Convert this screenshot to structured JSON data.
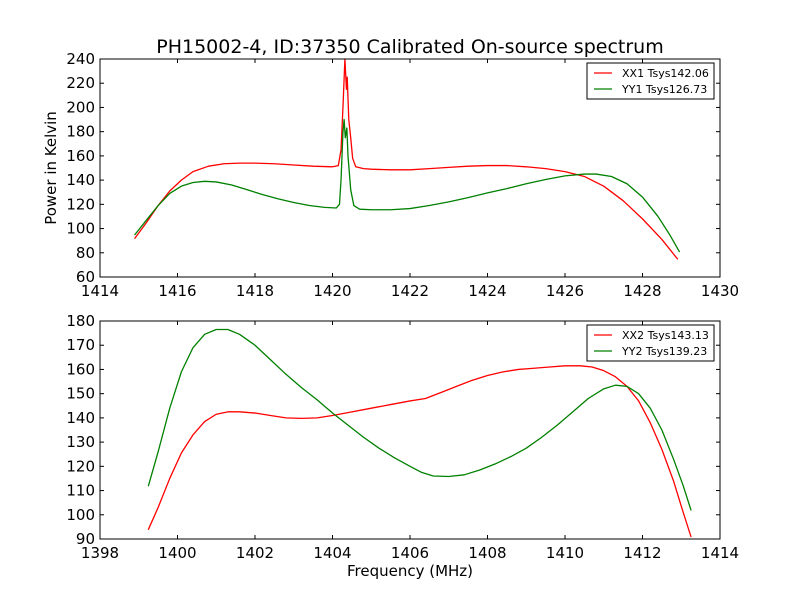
{
  "chart_data": [
    {
      "type": "line",
      "title": "PH15002-4, ID:37350 Calibrated On-source spectrum",
      "xlabel": "",
      "ylabel": "Power in Kelvin",
      "xlim": [
        1414,
        1430
      ],
      "ylim": [
        60,
        240
      ],
      "xticks": [
        1414,
        1416,
        1418,
        1420,
        1422,
        1424,
        1426,
        1428,
        1430
      ],
      "yticks": [
        60,
        80,
        100,
        120,
        140,
        160,
        180,
        200,
        220,
        240
      ],
      "grid": false,
      "legend_position": "top-right",
      "series": [
        {
          "name": "XX1 Tsys142.06",
          "color": "#ff0000",
          "points": [
            [
              1414.9,
              92
            ],
            [
              1415.2,
              105
            ],
            [
              1415.5,
              119
            ],
            [
              1415.8,
              131
            ],
            [
              1416.1,
              140
            ],
            [
              1416.4,
              147
            ],
            [
              1416.8,
              151.5
            ],
            [
              1417.2,
              153.5
            ],
            [
              1417.6,
              154
            ],
            [
              1418.0,
              154
            ],
            [
              1418.5,
              153.5
            ],
            [
              1419.0,
              152.5
            ],
            [
              1419.5,
              151.5
            ],
            [
              1420.0,
              151
            ],
            [
              1420.15,
              152
            ],
            [
              1420.22,
              165
            ],
            [
              1420.27,
              200
            ],
            [
              1420.32,
              240
            ],
            [
              1420.36,
              215
            ],
            [
              1420.38,
              225
            ],
            [
              1420.42,
              190
            ],
            [
              1420.47,
              175
            ],
            [
              1420.52,
              158
            ],
            [
              1420.6,
              151
            ],
            [
              1420.8,
              149.5
            ],
            [
              1421.0,
              149
            ],
            [
              1421.5,
              148.5
            ],
            [
              1422.0,
              148.5
            ],
            [
              1422.5,
              149.5
            ],
            [
              1423.0,
              150.5
            ],
            [
              1423.5,
              151.5
            ],
            [
              1424.0,
              152
            ],
            [
              1424.5,
              152
            ],
            [
              1425.0,
              151
            ],
            [
              1425.5,
              149.5
            ],
            [
              1426.0,
              147
            ],
            [
              1426.5,
              143
            ],
            [
              1427.0,
              135
            ],
            [
              1427.5,
              123
            ],
            [
              1428.0,
              108
            ],
            [
              1428.5,
              91
            ],
            [
              1428.9,
              75
            ]
          ]
        },
        {
          "name": "YY1 Tsys126.73",
          "color": "#008000",
          "points": [
            [
              1414.9,
              95
            ],
            [
              1415.2,
              107
            ],
            [
              1415.5,
              119
            ],
            [
              1415.8,
              129
            ],
            [
              1416.1,
              135
            ],
            [
              1416.4,
              138
            ],
            [
              1416.7,
              139
            ],
            [
              1417.0,
              138.5
            ],
            [
              1417.4,
              136
            ],
            [
              1417.8,
              132
            ],
            [
              1418.2,
              128
            ],
            [
              1418.6,
              124.5
            ],
            [
              1419.0,
              121.5
            ],
            [
              1419.4,
              119
            ],
            [
              1419.8,
              117.5
            ],
            [
              1420.1,
              117
            ],
            [
              1420.18,
              120
            ],
            [
              1420.22,
              140
            ],
            [
              1420.27,
              180
            ],
            [
              1420.3,
              190
            ],
            [
              1420.33,
              175
            ],
            [
              1420.37,
              183
            ],
            [
              1420.4,
              160
            ],
            [
              1420.47,
              132
            ],
            [
              1420.55,
              119
            ],
            [
              1420.7,
              116
            ],
            [
              1421.0,
              115.5
            ],
            [
              1421.5,
              115.5
            ],
            [
              1422.0,
              116.5
            ],
            [
              1422.5,
              119
            ],
            [
              1423.0,
              122
            ],
            [
              1423.5,
              125.5
            ],
            [
              1424.0,
              129.5
            ],
            [
              1424.5,
              133
            ],
            [
              1425.0,
              137
            ],
            [
              1425.5,
              140.5
            ],
            [
              1426.0,
              143.5
            ],
            [
              1426.5,
              145
            ],
            [
              1426.8,
              145
            ],
            [
              1427.2,
              143
            ],
            [
              1427.6,
              137
            ],
            [
              1428.0,
              126
            ],
            [
              1428.4,
              110
            ],
            [
              1428.7,
              95
            ],
            [
              1428.95,
              81
            ]
          ]
        }
      ]
    },
    {
      "type": "line",
      "title": "",
      "xlabel": "Frequency (MHz)",
      "ylabel": "",
      "xlim": [
        1398,
        1414
      ],
      "ylim": [
        90,
        180
      ],
      "xticks": [
        1398,
        1400,
        1402,
        1404,
        1406,
        1408,
        1410,
        1412,
        1414
      ],
      "yticks": [
        90,
        100,
        110,
        120,
        130,
        140,
        150,
        160,
        170,
        180
      ],
      "grid": false,
      "legend_position": "top-right",
      "series": [
        {
          "name": "XX2 Tsys143.13",
          "color": "#ff0000",
          "points": [
            [
              1399.25,
              94
            ],
            [
              1399.5,
              103
            ],
            [
              1399.8,
              115
            ],
            [
              1400.1,
              125.5
            ],
            [
              1400.4,
              133
            ],
            [
              1400.7,
              138.5
            ],
            [
              1401.0,
              141.5
            ],
            [
              1401.3,
              142.5
            ],
            [
              1401.6,
              142.5
            ],
            [
              1402.0,
              142
            ],
            [
              1402.4,
              141
            ],
            [
              1402.8,
              140
            ],
            [
              1403.2,
              139.8
            ],
            [
              1403.6,
              140
            ],
            [
              1404.0,
              141
            ],
            [
              1404.5,
              142.5
            ],
            [
              1405.0,
              144
            ],
            [
              1405.5,
              145.5
            ],
            [
              1406.0,
              147
            ],
            [
              1406.4,
              148
            ],
            [
              1406.8,
              150.5
            ],
            [
              1407.2,
              153
            ],
            [
              1407.6,
              155.5
            ],
            [
              1408.0,
              157.5
            ],
            [
              1408.4,
              159
            ],
            [
              1408.8,
              160
            ],
            [
              1409.2,
              160.5
            ],
            [
              1409.6,
              161
            ],
            [
              1410.0,
              161.5
            ],
            [
              1410.4,
              161.5
            ],
            [
              1410.7,
              161
            ],
            [
              1411.0,
              159.5
            ],
            [
              1411.3,
              157
            ],
            [
              1411.6,
              153
            ],
            [
              1411.9,
              147
            ],
            [
              1412.2,
              138
            ],
            [
              1412.5,
              127
            ],
            [
              1412.8,
              114
            ],
            [
              1413.05,
              101
            ],
            [
              1413.25,
              91
            ]
          ]
        },
        {
          "name": "YY2 Tsys139.23",
          "color": "#008000",
          "points": [
            [
              1399.25,
              112
            ],
            [
              1399.5,
              126
            ],
            [
              1399.8,
              144
            ],
            [
              1400.1,
              159
            ],
            [
              1400.4,
              169
            ],
            [
              1400.7,
              174.5
            ],
            [
              1401.0,
              176.5
            ],
            [
              1401.3,
              176.5
            ],
            [
              1401.6,
              174.5
            ],
            [
              1402.0,
              170
            ],
            [
              1402.4,
              164
            ],
            [
              1402.8,
              158
            ],
            [
              1403.2,
              152.5
            ],
            [
              1403.6,
              147.5
            ],
            [
              1404.0,
              142
            ],
            [
              1404.4,
              137
            ],
            [
              1404.8,
              132
            ],
            [
              1405.2,
              127.5
            ],
            [
              1405.6,
              123.5
            ],
            [
              1406.0,
              120
            ],
            [
              1406.3,
              117.5
            ],
            [
              1406.6,
              116
            ],
            [
              1407.0,
              115.8
            ],
            [
              1407.4,
              116.5
            ],
            [
              1407.8,
              118.5
            ],
            [
              1408.2,
              121
            ],
            [
              1408.6,
              124
            ],
            [
              1409.0,
              127.5
            ],
            [
              1409.4,
              132
            ],
            [
              1409.8,
              137
            ],
            [
              1410.2,
              142.5
            ],
            [
              1410.6,
              148
            ],
            [
              1411.0,
              152
            ],
            [
              1411.3,
              153.5
            ],
            [
              1411.6,
              153
            ],
            [
              1411.9,
              150
            ],
            [
              1412.2,
              144
            ],
            [
              1412.5,
              135
            ],
            [
              1412.8,
              123
            ],
            [
              1413.05,
              112
            ],
            [
              1413.25,
              102
            ]
          ]
        }
      ]
    }
  ]
}
